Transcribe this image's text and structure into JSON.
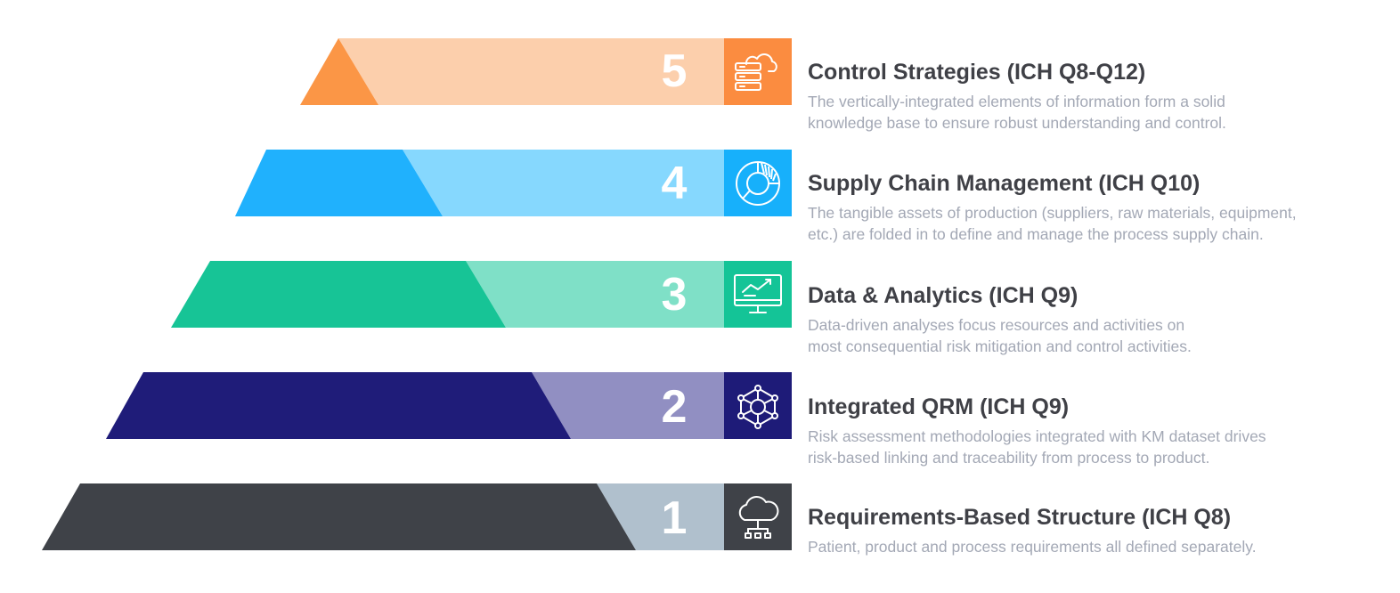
{
  "tiers": [
    {
      "number": "5",
      "title": "Control Strategies (ICH Q8-Q12)",
      "description_line1": "The vertically-integrated elements of information form a solid",
      "description_line2": "knowledge base to ensure robust understanding and control.",
      "icon": "cloud-server-icon",
      "colors": {
        "dark": "#fb9646",
        "light": "#fccfac",
        "icon_bg": "#fb8c40"
      }
    },
    {
      "number": "4",
      "title": "Supply Chain Management (ICH Q10)",
      "description_line1": "The tangible assets of production (suppliers, raw materials, equipment,",
      "description_line2": "etc.) are folded in to define and  manage the process supply chain.",
      "icon": "donut-chart-icon",
      "colors": {
        "dark": "#20b1fd",
        "light": "#86d8fe",
        "icon_bg": "#17b0fb"
      }
    },
    {
      "number": "3",
      "title": "Data & Analytics (ICH Q9)",
      "description_line1": "Data-driven analyses focus resources and activities on",
      "description_line2": "most consequential risk mitigation and control activities.",
      "icon": "monitor-chart-icon",
      "colors": {
        "dark": "#17c496",
        "light": "#7fe0c7",
        "icon_bg": "#14c497"
      }
    },
    {
      "number": "2",
      "title": "Integrated QRM (ICH Q9)",
      "description_line1": "Risk assessment methodologies integrated with KM dataset drives",
      "description_line2": "risk-based linking and traceability from process to product.",
      "icon": "network-hexagon-icon",
      "colors": {
        "dark": "#1f1c79",
        "light": "#918fc2",
        "icon_bg": "#1e1b78"
      }
    },
    {
      "number": "1",
      "title": "Requirements-Based Structure (ICH Q8)",
      "description_line1": "Patient, product and process requirements all defined separately.",
      "description_line2": "",
      "icon": "cloud-network-icon",
      "colors": {
        "dark": "#3f4248",
        "light": "#b0c0cd",
        "icon_bg": "#3f4248"
      }
    }
  ]
}
